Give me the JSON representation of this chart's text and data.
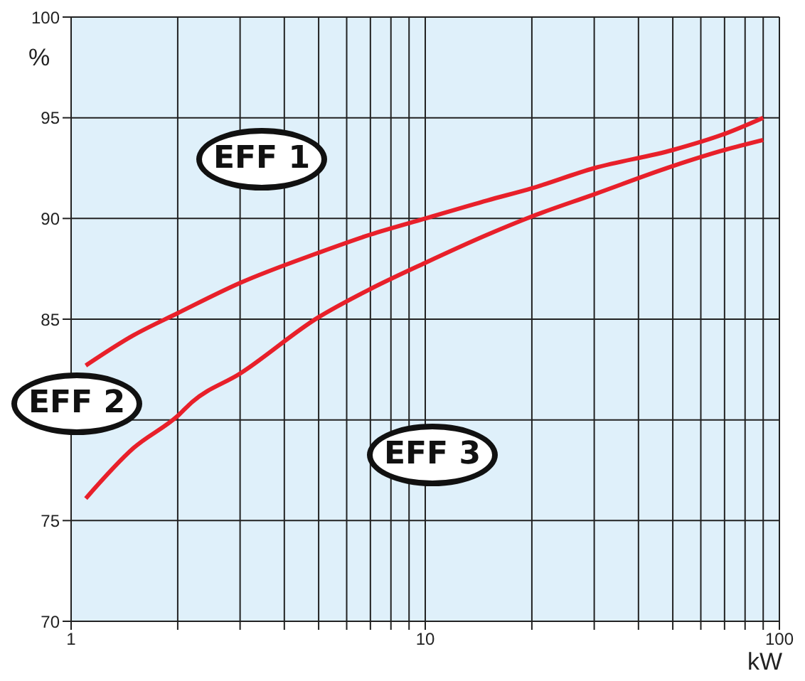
{
  "chart_data": {
    "type": "line",
    "xlabel": "kW",
    "ylabel": "%",
    "log": "x",
    "grid": true,
    "xlim": [
      1,
      100
    ],
    "ylim": [
      70,
      100
    ],
    "xticks": [
      1,
      {
        "value": 2,
        "label": null
      },
      {
        "value": 3,
        "label": null
      },
      {
        "value": 4,
        "label": null
      },
      {
        "value": 5,
        "label": null
      },
      {
        "value": 6,
        "label": null
      },
      {
        "value": 7,
        "label": null
      },
      {
        "value": 8,
        "label": null
      },
      {
        "value": 9,
        "label": null
      },
      10,
      {
        "value": 20,
        "label": null
      },
      {
        "value": 30,
        "label": null
      },
      {
        "value": 40,
        "label": null
      },
      {
        "value": 50,
        "label": null
      },
      {
        "value": 60,
        "label": null
      },
      {
        "value": 70,
        "label": null
      },
      {
        "value": 80,
        "label": null
      },
      {
        "value": 90,
        "label": null
      },
      100
    ],
    "yticks": [
      70,
      75,
      {
        "value": 80,
        "label": null
      },
      85,
      90,
      95,
      100
    ],
    "marker": "none",
    "line_style": "solid",
    "series": [
      {
        "color": "#e8202a",
        "x": [
          1.1,
          1.5,
          2,
          3,
          5,
          7,
          10,
          15,
          20,
          30,
          50,
          70,
          90
        ],
        "values": [
          82.7,
          84.2,
          85.3,
          86.8,
          88.3,
          89.2,
          90.0,
          90.9,
          91.5,
          92.5,
          93.4,
          94.2,
          95.0
        ]
      },
      {
        "color": "#e8202a",
        "x": [
          1.1,
          1.5,
          2,
          2.2,
          3,
          5,
          7,
          10,
          15,
          20,
          30,
          50,
          70,
          90
        ],
        "values": [
          76.1,
          78.6,
          80.2,
          80.9,
          82.3,
          85.1,
          86.5,
          87.8,
          89.2,
          90.1,
          91.2,
          92.6,
          93.4,
          93.9
        ]
      }
    ],
    "annotations": [
      "EFF 1",
      "EFF 2",
      "EFF 3"
    ]
  }
}
